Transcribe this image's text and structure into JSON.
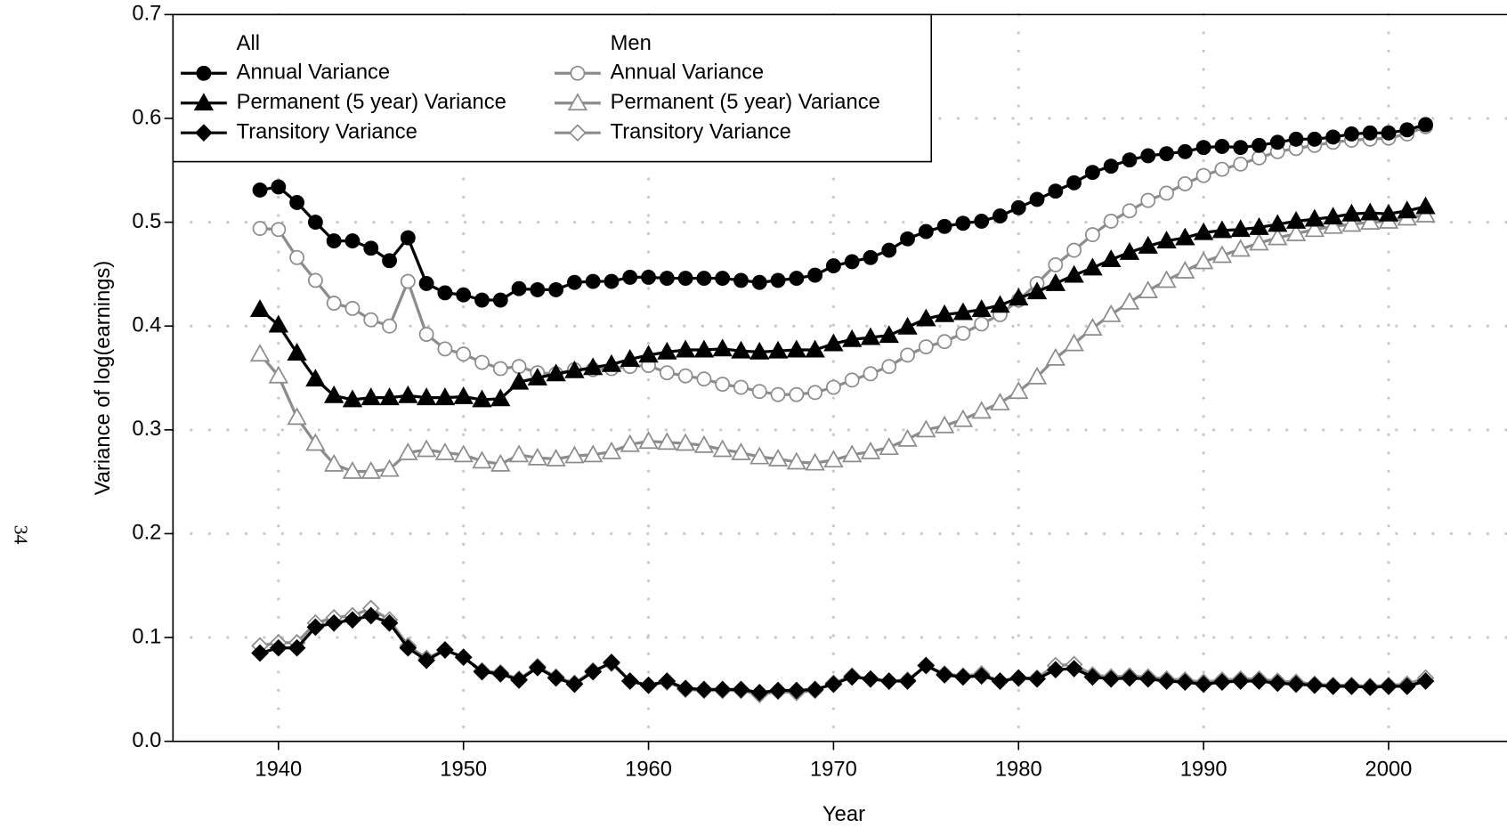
{
  "page_number": "34",
  "chart_data": {
    "type": "line",
    "xlabel": "Year",
    "ylabel": "Variance of log(earnings)",
    "legend_titles": [
      "All",
      "Men"
    ],
    "legend": "upper left",
    "grid": true,
    "xlim": [
      1934.3,
      2006.4
    ],
    "xticks": [
      1940,
      1950,
      1960,
      1970,
      1980,
      1990,
      2000
    ],
    "ylim": [
      0,
      0.7
    ],
    "yticks": [
      {
        "value": 0,
        "label": "0.0"
      },
      0.1,
      0.2,
      0.3,
      0.4,
      0.5,
      0.6,
      0.7
    ],
    "x": [
      1939,
      1940,
      1941,
      1942,
      1943,
      1944,
      1945,
      1946,
      1947,
      1948,
      1949,
      1950,
      1951,
      1952,
      1953,
      1954,
      1955,
      1956,
      1957,
      1958,
      1959,
      1960,
      1961,
      1962,
      1963,
      1964,
      1965,
      1966,
      1967,
      1968,
      1969,
      1970,
      1971,
      1972,
      1973,
      1974,
      1975,
      1976,
      1977,
      1978,
      1979,
      1980,
      1981,
      1982,
      1983,
      1984,
      1985,
      1986,
      1987,
      1988,
      1989,
      1990,
      1991,
      1992,
      1993,
      1994,
      1995,
      1996,
      1997,
      1998,
      1999,
      2000,
      2001,
      2002
    ],
    "series": [
      {
        "name": "Annual Variance",
        "group": 0,
        "color": "#000000",
        "fill": "#000000",
        "marker": "circle",
        "values": [
          0.531,
          0.534,
          0.519,
          0.5,
          0.482,
          0.482,
          0.475,
          0.463,
          0.485,
          0.441,
          0.432,
          0.43,
          0.425,
          0.425,
          0.436,
          0.435,
          0.435,
          0.442,
          0.443,
          0.443,
          0.447,
          0.447,
          0.446,
          0.446,
          0.446,
          0.446,
          0.444,
          0.442,
          0.444,
          0.446,
          0.449,
          0.458,
          0.462,
          0.466,
          0.473,
          0.484,
          0.491,
          0.496,
          0.499,
          0.501,
          0.506,
          0.514,
          0.522,
          0.53,
          0.538,
          0.548,
          0.554,
          0.56,
          0.564,
          0.566,
          0.568,
          0.572,
          0.573,
          0.572,
          0.574,
          0.577,
          0.58,
          0.58,
          0.582,
          0.585,
          0.586,
          0.586,
          0.589,
          0.594
        ]
      },
      {
        "name": "Permanent (5 year) Variance",
        "group": 0,
        "color": "#000000",
        "fill": "#000000",
        "marker": "triangle",
        "values": [
          0.416,
          0.401,
          0.374,
          0.349,
          0.333,
          0.329,
          0.331,
          0.331,
          0.333,
          0.331,
          0.331,
          0.332,
          0.329,
          0.33,
          0.346,
          0.35,
          0.354,
          0.357,
          0.36,
          0.363,
          0.368,
          0.372,
          0.375,
          0.377,
          0.377,
          0.378,
          0.376,
          0.375,
          0.376,
          0.377,
          0.377,
          0.383,
          0.387,
          0.389,
          0.391,
          0.399,
          0.407,
          0.411,
          0.413,
          0.416,
          0.42,
          0.427,
          0.433,
          0.441,
          0.449,
          0.456,
          0.464,
          0.471,
          0.477,
          0.482,
          0.485,
          0.49,
          0.492,
          0.493,
          0.495,
          0.498,
          0.501,
          0.503,
          0.505,
          0.508,
          0.509,
          0.508,
          0.511,
          0.515
        ]
      },
      {
        "name": "Transitory Variance",
        "group": 0,
        "color": "#000000",
        "fill": "#000000",
        "marker": "diamond",
        "values": [
          0.085,
          0.09,
          0.09,
          0.11,
          0.114,
          0.117,
          0.121,
          0.114,
          0.09,
          0.078,
          0.088,
          0.081,
          0.067,
          0.065,
          0.059,
          0.071,
          0.061,
          0.055,
          0.067,
          0.076,
          0.058,
          0.054,
          0.058,
          0.051,
          0.05,
          0.05,
          0.05,
          0.047,
          0.049,
          0.049,
          0.05,
          0.055,
          0.062,
          0.06,
          0.058,
          0.058,
          0.073,
          0.064,
          0.062,
          0.063,
          0.058,
          0.061,
          0.06,
          0.069,
          0.07,
          0.062,
          0.06,
          0.061,
          0.06,
          0.058,
          0.057,
          0.055,
          0.057,
          0.058,
          0.058,
          0.056,
          0.055,
          0.054,
          0.053,
          0.053,
          0.052,
          0.053,
          0.053,
          0.058
        ]
      },
      {
        "name": "Annual Variance",
        "group": 1,
        "color": "#8c8c8c",
        "fill": "#ffffff",
        "marker": "circle",
        "values": [
          0.494,
          0.493,
          0.466,
          0.444,
          0.422,
          0.417,
          0.406,
          0.4,
          0.443,
          0.392,
          0.378,
          0.373,
          0.365,
          0.359,
          0.361,
          0.355,
          0.354,
          0.358,
          0.358,
          0.359,
          0.361,
          0.362,
          0.355,
          0.352,
          0.349,
          0.344,
          0.341,
          0.337,
          0.334,
          0.334,
          0.336,
          0.341,
          0.348,
          0.354,
          0.361,
          0.372,
          0.38,
          0.385,
          0.393,
          0.402,
          0.411,
          0.425,
          0.441,
          0.459,
          0.473,
          0.488,
          0.501,
          0.511,
          0.521,
          0.528,
          0.537,
          0.545,
          0.551,
          0.556,
          0.562,
          0.568,
          0.571,
          0.574,
          0.577,
          0.579,
          0.58,
          0.581,
          0.585,
          0.592
        ]
      },
      {
        "name": "Permanent (5 year) Variance",
        "group": 1,
        "color": "#8c8c8c",
        "fill": "#ffffff",
        "marker": "triangle",
        "values": [
          0.373,
          0.352,
          0.312,
          0.287,
          0.267,
          0.26,
          0.26,
          0.262,
          0.278,
          0.281,
          0.278,
          0.276,
          0.27,
          0.267,
          0.276,
          0.273,
          0.272,
          0.275,
          0.276,
          0.279,
          0.286,
          0.289,
          0.288,
          0.287,
          0.285,
          0.281,
          0.278,
          0.274,
          0.272,
          0.269,
          0.268,
          0.271,
          0.276,
          0.279,
          0.283,
          0.291,
          0.3,
          0.304,
          0.31,
          0.318,
          0.326,
          0.337,
          0.351,
          0.369,
          0.383,
          0.398,
          0.411,
          0.423,
          0.434,
          0.444,
          0.453,
          0.462,
          0.468,
          0.474,
          0.48,
          0.485,
          0.489,
          0.493,
          0.496,
          0.498,
          0.5,
          0.501,
          0.504,
          0.507
        ]
      },
      {
        "name": "Transitory Variance",
        "group": 1,
        "color": "#8c8c8c",
        "fill": "#ffffff",
        "marker": "diamond",
        "values": [
          0.092,
          0.095,
          0.095,
          0.114,
          0.119,
          0.121,
          0.128,
          0.117,
          0.092,
          0.08,
          0.088,
          0.081,
          0.068,
          0.066,
          0.06,
          0.072,
          0.062,
          0.056,
          0.068,
          0.075,
          0.058,
          0.054,
          0.057,
          0.05,
          0.049,
          0.049,
          0.049,
          0.045,
          0.048,
          0.047,
          0.049,
          0.056,
          0.063,
          0.06,
          0.058,
          0.059,
          0.073,
          0.065,
          0.063,
          0.065,
          0.058,
          0.061,
          0.061,
          0.073,
          0.074,
          0.064,
          0.062,
          0.063,
          0.062,
          0.06,
          0.059,
          0.057,
          0.059,
          0.06,
          0.06,
          0.058,
          0.057,
          0.055,
          0.054,
          0.054,
          0.053,
          0.054,
          0.055,
          0.061
        ]
      }
    ]
  }
}
